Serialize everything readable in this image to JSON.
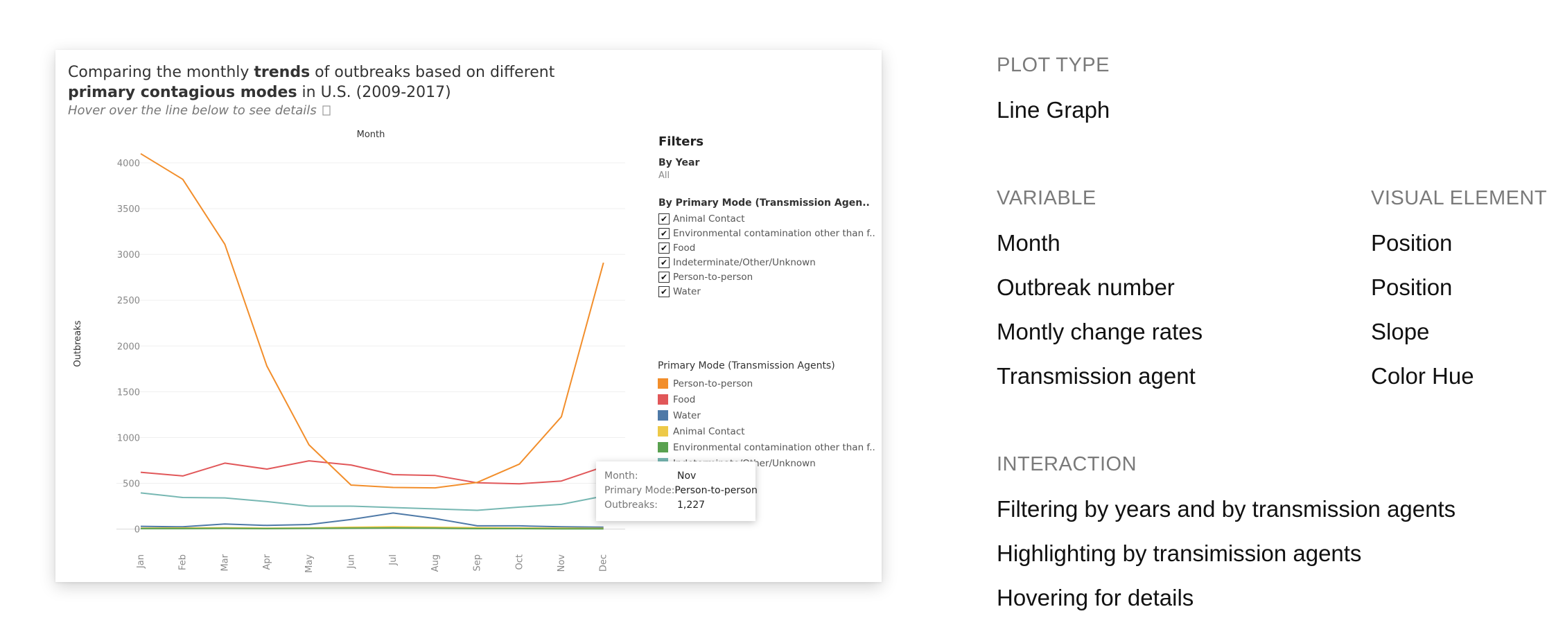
{
  "chart": {
    "title_pre": "Comparing the monthly ",
    "title_bold1": "trends",
    "title_mid": " of outbreaks based on different",
    "title_bold2": "primary contagious modes",
    "title_post": " in U.S. (2009-2017)",
    "subtitle": "Hover over the line below to see details",
    "subtitle_icon": "info-icon"
  },
  "filters": {
    "title": "Filters",
    "by_year_label": "By Year",
    "by_year_value": "All",
    "by_mode_label": "By Primary Mode (Transmission Agen..",
    "check_glyph": "✔",
    "items": [
      "Animal Contact",
      "Environmental contamination other than f..",
      "Food",
      "Indeterminate/Other/Unknown",
      "Person-to-person",
      "Water"
    ]
  },
  "legend": {
    "title": "Primary Mode (Transmission Agents)",
    "items": [
      {
        "label": "Person-to-person",
        "color": "#f28e2b"
      },
      {
        "label": "Food",
        "color": "#e15759"
      },
      {
        "label": "Water",
        "color": "#4e79a7"
      },
      {
        "label": "Animal Contact",
        "color": "#edc948"
      },
      {
        "label": "Environmental contamination other than f..",
        "color": "#59a14f"
      },
      {
        "label": "Indeterminate/Other/Unknown",
        "color": "#76b7b2"
      }
    ]
  },
  "tooltip": {
    "month_label": "Month:",
    "month_value": "Nov",
    "mode_label": "Primary Mode:",
    "mode_value": "Person-to-person",
    "outbreaks_label": "Outbreaks:",
    "outbreaks_value": "1,227"
  },
  "chart_data": {
    "type": "line",
    "xlabel": "Month",
    "ylabel": "Outbreaks",
    "x": [
      "Jan",
      "Feb",
      "Mar",
      "Apr",
      "May",
      "Jun",
      "Jul",
      "Aug",
      "Sep",
      "Oct",
      "Nov",
      "Dec"
    ],
    "yticks": [
      0,
      500,
      1000,
      1500,
      2000,
      2500,
      3000,
      3500,
      4000
    ],
    "ylim": [
      -200,
      4250
    ],
    "grid": true,
    "series": [
      {
        "name": "Indeterminate/Other/Unknown",
        "color": "#76b7b2",
        "values": [
          395,
          345,
          340,
          300,
          250,
          250,
          235,
          220,
          205,
          240,
          270,
          360
        ]
      },
      {
        "name": "Food",
        "color": "#e15759",
        "values": [
          620,
          580,
          720,
          655,
          745,
          700,
          595,
          585,
          505,
          495,
          525,
          680
        ]
      },
      {
        "name": "Water",
        "color": "#4e79a7",
        "values": [
          30,
          25,
          55,
          40,
          50,
          105,
          175,
          115,
          35,
          35,
          25,
          20
        ]
      },
      {
        "name": "Animal Contact",
        "color": "#edc948",
        "values": [
          10,
          12,
          15,
          10,
          12,
          20,
          25,
          20,
          15,
          12,
          10,
          8
        ]
      },
      {
        "name": "Environmental contamination other than f..",
        "color": "#59a14f",
        "values": [
          5,
          5,
          8,
          5,
          8,
          10,
          12,
          10,
          5,
          5,
          3,
          2
        ]
      },
      {
        "name": "Person-to-person",
        "color": "#f28e2b",
        "values": [
          4100,
          3820,
          3110,
          1780,
          920,
          480,
          455,
          450,
          510,
          710,
          1227,
          2910
        ]
      }
    ]
  },
  "info": {
    "plot_type_heading": "PLOT TYPE",
    "plot_type": "Line Graph",
    "variable_heading": "VARIABLE",
    "visual_heading": "VISUAL ELEMENT",
    "variables": [
      "Month",
      "Outbreak number",
      "Montly change rates",
      "Transmission agent"
    ],
    "visuals": [
      "Position",
      "Position",
      "Slope",
      "Color Hue"
    ],
    "interaction_heading": "INTERACTION",
    "interactions": [
      "Filtering by years and by transmission agents",
      "Highlighting by transimission agents",
      "Hovering for details"
    ]
  }
}
